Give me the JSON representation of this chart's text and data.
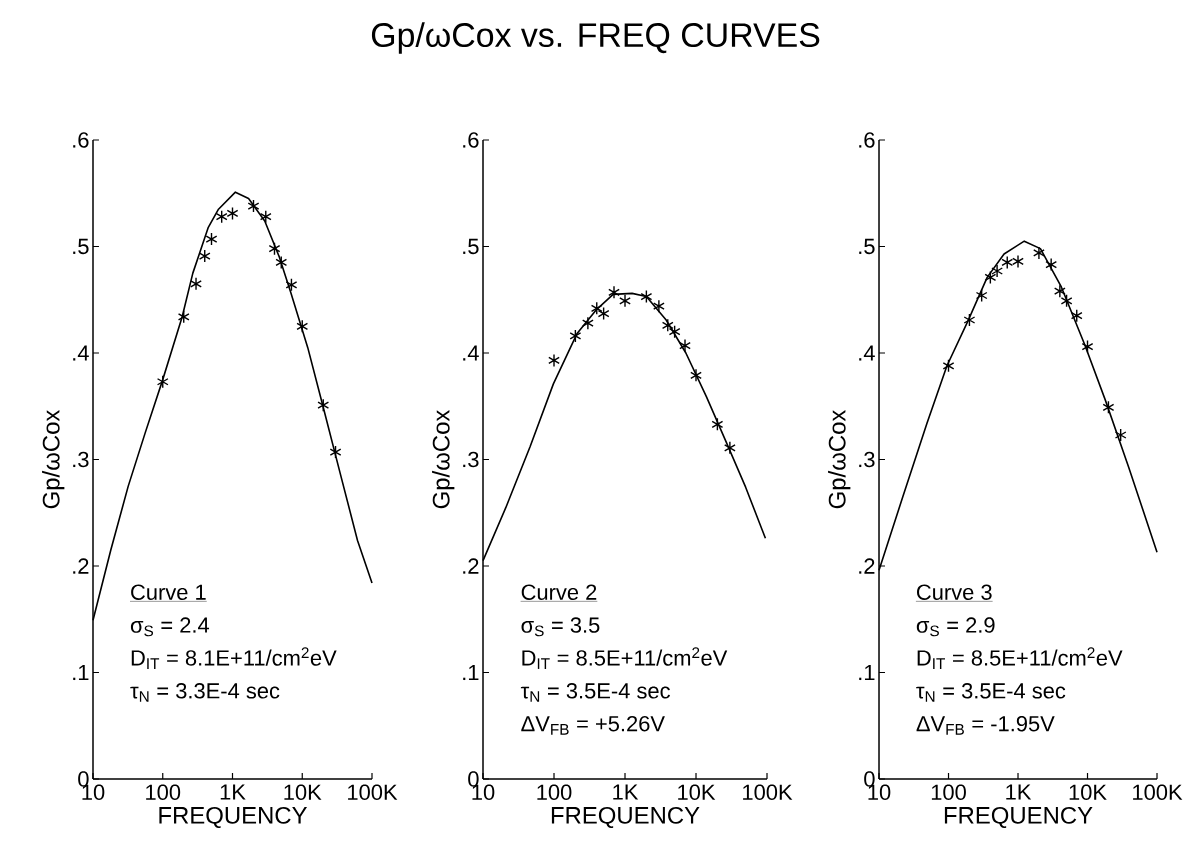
{
  "chart_data": [
    {
      "type": "line",
      "xlabel": "FREQUENCY",
      "ylabel": "Gp/ωCox",
      "log": "x",
      "xlim": [
        10,
        100000
      ],
      "ylim": [
        0,
        0.6
      ],
      "xticks": [
        10,
        100,
        {
          "value": 1000,
          "label": "1K"
        },
        {
          "value": 10000,
          "label": "10K"
        },
        {
          "value": 100000,
          "label": "100K"
        }
      ],
      "yticks": [
        0,
        {
          "value": 0.1,
          "label": ".1"
        },
        {
          "value": 0.2,
          "label": ".2"
        },
        {
          "value": 0.3,
          "label": ".3"
        },
        {
          "value": 0.4,
          "label": ".4"
        },
        {
          "value": 0.5,
          "label": ".5"
        },
        {
          "value": 0.6,
          "label": ".6"
        }
      ],
      "annotations": [
        "Curve 1",
        "σ$_{S}$ = 2.4",
        "D$_{IT}$ = 8.1E+11/cm$^{2}$eV",
        "τ$_{N}$ = 3.3E-4 sec"
      ],
      "series": [
        {
          "type": "line",
          "color": "#000000",
          "x": [
            10,
            18,
            32,
            56,
            100,
            190,
            270,
            450,
            630,
            1100,
            1700,
            2900,
            4700,
            6900,
            12000,
            20000,
            35000,
            62000,
            100000
          ],
          "values": [
            0.149,
            0.215,
            0.275,
            0.325,
            0.375,
            0.434,
            0.475,
            0.518,
            0.535,
            0.551,
            0.545,
            0.524,
            0.49,
            0.456,
            0.405,
            0.349,
            0.287,
            0.224,
            0.184
          ]
        },
        {
          "type": "scatter",
          "marker": "cross",
          "color": "#000000",
          "x": [
            100,
            200,
            300,
            400,
            500,
            700,
            1000,
            2000,
            3000,
            4000,
            5000,
            7000,
            10000,
            20000,
            30000
          ],
          "values": [
            0.373,
            0.434,
            0.465,
            0.491,
            0.507,
            0.528,
            0.531,
            0.538,
            0.528,
            0.498,
            0.485,
            0.464,
            0.425,
            0.351,
            0.307
          ]
        }
      ]
    },
    {
      "type": "line",
      "xlabel": "FREQUENCY",
      "ylabel": "Gp/ωCox",
      "log": "x",
      "xlim": [
        10,
        100000
      ],
      "ylim": [
        0,
        0.6
      ],
      "xticks": [
        10,
        100,
        {
          "value": 1000,
          "label": "1K"
        },
        {
          "value": 10000,
          "label": "10K"
        },
        {
          "value": 100000,
          "label": "100K"
        }
      ],
      "yticks": [
        0,
        {
          "value": 0.1,
          "label": ".1"
        },
        {
          "value": 0.2,
          "label": ".2"
        },
        {
          "value": 0.3,
          "label": ".3"
        },
        {
          "value": 0.4,
          "label": ".4"
        },
        {
          "value": 0.5,
          "label": ".5"
        },
        {
          "value": 0.6,
          "label": ".6"
        }
      ],
      "title": "Gp/ωCox vs. FREQ CURVES",
      "annotations": [
        "Curve 2",
        "σ$_{S}$ = 3.5",
        "D$_{IT}$ = 8.5E+11/cm$^{2}$eV",
        "τ$_{N}$ = 3.5E-4 sec",
        "ΔV$_{FB}$ = +5.26V"
      ],
      "series": [
        {
          "type": "line",
          "color": "#000000",
          "x": [
            10,
            21,
            46,
            98,
            210,
            400,
            680,
            1260,
            2000,
            3800,
            7200,
            14000,
            26000,
            50000,
            95000
          ],
          "values": [
            0.205,
            0.255,
            0.312,
            0.371,
            0.418,
            0.441,
            0.455,
            0.456,
            0.453,
            0.431,
            0.4,
            0.359,
            0.318,
            0.274,
            0.226
          ]
        },
        {
          "type": "scatter",
          "marker": "cross",
          "color": "#000000",
          "x": [
            100,
            200,
            300,
            400,
            500,
            700,
            1000,
            2000,
            3000,
            4000,
            5000,
            7000,
            10000,
            20000,
            30000
          ],
          "values": [
            0.393,
            0.416,
            0.428,
            0.442,
            0.437,
            0.457,
            0.449,
            0.453,
            0.444,
            0.426,
            0.42,
            0.407,
            0.379,
            0.333,
            0.311
          ]
        }
      ]
    },
    {
      "type": "line",
      "xlabel": "FREQUENCY",
      "ylabel": "Gp/ωCox",
      "log": "x",
      "xlim": [
        10,
        100000
      ],
      "ylim": [
        0,
        0.6
      ],
      "xticks": [
        10,
        100,
        {
          "value": 1000,
          "label": "1K"
        },
        {
          "value": 10000,
          "label": "10K"
        },
        {
          "value": 100000,
          "label": "100K"
        }
      ],
      "yticks": [
        0,
        {
          "value": 0.1,
          "label": ".1"
        },
        {
          "value": 0.2,
          "label": ".2"
        },
        {
          "value": 0.3,
          "label": ".3"
        },
        {
          "value": 0.4,
          "label": ".4"
        },
        {
          "value": 0.5,
          "label": ".5"
        },
        {
          "value": 0.6,
          "label": ".6"
        }
      ],
      "annotations": [
        "Curve 3",
        "σ$_{S}$ = 2.9",
        "D$_{IT}$ = 8.5E+11/cm$^{2}$eV",
        "τ$_{N}$ = 3.5E-4 sec",
        "ΔV$_{FB}$ = -1.95V"
      ],
      "series": [
        {
          "type": "line",
          "color": "#000000",
          "x": [
            10,
            22,
            49,
            95,
            190,
            360,
            630,
            1230,
            2100,
            4200,
            9100,
            18000,
            39000,
            100000
          ],
          "values": [
            0.196,
            0.265,
            0.334,
            0.388,
            0.43,
            0.471,
            0.493,
            0.505,
            0.498,
            0.462,
            0.408,
            0.356,
            0.293,
            0.213
          ]
        },
        {
          "type": "scatter",
          "marker": "cross",
          "color": "#000000",
          "x": [
            100,
            200,
            300,
            400,
            500,
            700,
            1000,
            2000,
            3000,
            4000,
            5000,
            7000,
            10000,
            20000,
            30000
          ],
          "values": [
            0.388,
            0.431,
            0.454,
            0.471,
            0.477,
            0.485,
            0.486,
            0.494,
            0.483,
            0.458,
            0.449,
            0.435,
            0.406,
            0.349,
            0.323
          ]
        }
      ]
    }
  ]
}
